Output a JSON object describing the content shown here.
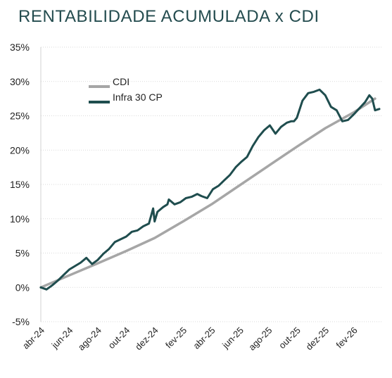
{
  "chart_data": {
    "type": "line",
    "title": "RENTABILIDADE ACUMULADA x CDI",
    "xlabel": "",
    "ylabel": "",
    "x_ticks": [
      "abr-24",
      "jun-24",
      "ago-24",
      "out-24",
      "dez-24",
      "fev-25",
      "abr-25",
      "jun-25",
      "ago-25",
      "out-25",
      "dez-25",
      "fev-26"
    ],
    "y_ticks": [
      "35%",
      "30%",
      "25%",
      "20%",
      "15%",
      "10%",
      "5%",
      "0%",
      "-5%"
    ],
    "ylim": [
      -5,
      35
    ],
    "x_domain": [
      0,
      24
    ],
    "grid": true,
    "legend_position": "upper-left",
    "series": [
      {
        "name": "CDI",
        "color": "#a6a6a6",
        "x": [
          0,
          2,
          4,
          6,
          8,
          10,
          12,
          14,
          16,
          18,
          20,
          22,
          23.5
        ],
        "values": [
          0,
          1.75,
          3.5,
          5.3,
          7.2,
          9.6,
          12.1,
          14.9,
          17.7,
          20.5,
          23.2,
          25.5,
          27.5
        ]
      },
      {
        "name": "Infra 30 CP",
        "color": "#1f4d4e",
        "x": [
          0,
          0.4,
          0.8,
          1.2,
          1.6,
          2.0,
          2.4,
          2.8,
          3.2,
          3.6,
          4.0,
          4.4,
          4.8,
          5.2,
          5.6,
          6.0,
          6.4,
          6.8,
          7.2,
          7.6,
          7.9,
          8.0,
          8.2,
          8.6,
          8.9,
          9.0,
          9.4,
          9.8,
          10.2,
          10.6,
          11.0,
          11.3,
          11.7,
          12.1,
          12.5,
          12.9,
          13.3,
          13.7,
          14.1,
          14.5,
          14.9,
          15.3,
          15.7,
          16.1,
          16.5,
          16.9,
          17.3,
          17.6,
          17.8,
          18.0,
          18.4,
          18.8,
          19.2,
          19.6,
          20.0,
          20.4,
          20.8,
          21.2,
          21.6,
          22.0,
          22.4,
          22.8,
          23.1,
          23.3,
          23.5,
          23.8
        ],
        "values": [
          0,
          -0.3,
          0.3,
          1.0,
          1.8,
          2.6,
          3.1,
          3.6,
          4.3,
          3.4,
          4.0,
          4.9,
          5.6,
          6.6,
          7.0,
          7.4,
          8.1,
          8.3,
          8.9,
          9.3,
          11.5,
          9.6,
          11.0,
          11.7,
          12.1,
          12.8,
          12.1,
          12.4,
          13.0,
          13.2,
          13.6,
          13.3,
          13.0,
          14.3,
          14.8,
          15.6,
          16.4,
          17.5,
          18.3,
          19.0,
          20.6,
          21.9,
          22.9,
          23.6,
          22.4,
          23.4,
          24.0,
          24.2,
          24.2,
          24.7,
          27.2,
          28.3,
          28.5,
          28.8,
          28.0,
          26.3,
          25.8,
          24.2,
          24.4,
          25.2,
          26.1,
          27.0,
          28.0,
          27.5,
          25.8,
          26.0
        ]
      }
    ]
  }
}
